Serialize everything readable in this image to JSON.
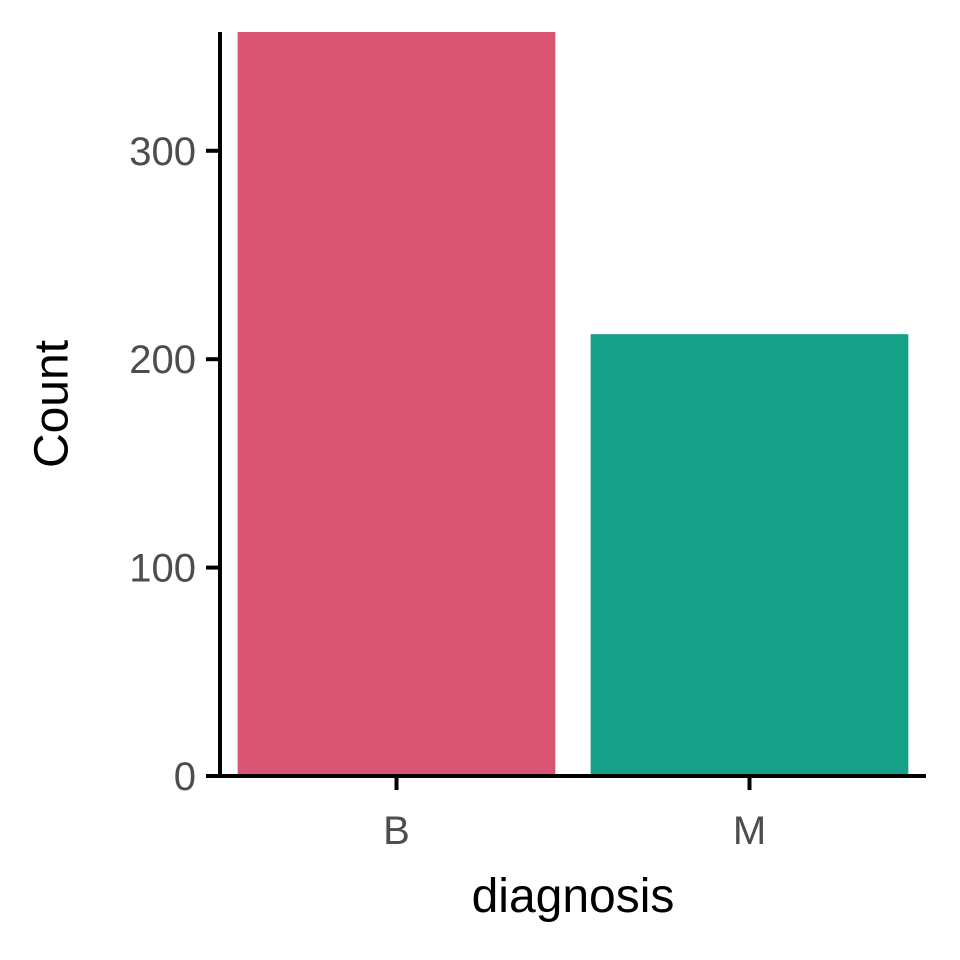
{
  "chart_data": {
    "type": "bar",
    "title": "",
    "xlabel": "diagnosis",
    "ylabel": "Count",
    "categories": [
      "B",
      "M"
    ],
    "values": [
      357,
      212
    ],
    "colors": [
      "#d85574",
      "#17a088"
    ],
    "ylim": [
      0,
      357
    ],
    "yticks": [
      0,
      100,
      200,
      300
    ],
    "ytick_labels": [
      "0",
      "100",
      "200",
      "300"
    ],
    "grid": false,
    "legend": "none"
  }
}
